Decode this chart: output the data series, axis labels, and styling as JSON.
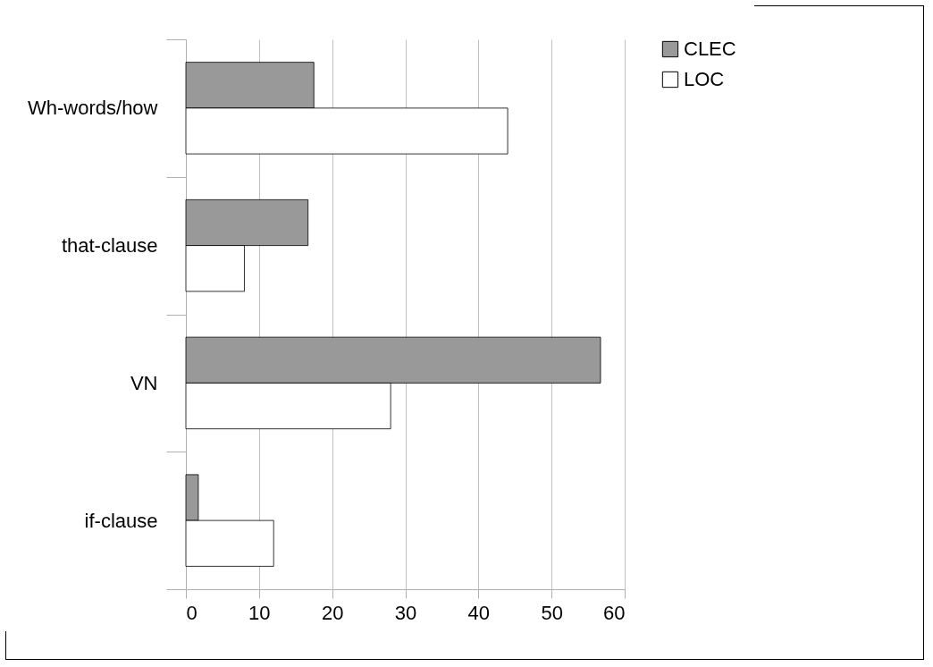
{
  "chart_data": {
    "type": "bar",
    "orientation": "horizontal",
    "categories": [
      "Wh-words/how",
      "that-clause",
      "VN",
      "if-clause"
    ],
    "series": [
      {
        "name": "CLEC",
        "color": "#999999",
        "values": [
          17.5,
          16.7,
          56.7,
          1.7
        ]
      },
      {
        "name": "LOC",
        "color": "#ffffff",
        "values": [
          44.0,
          8.0,
          28.0,
          12.0
        ]
      }
    ],
    "xlim": [
      0,
      60
    ],
    "xticks": [
      0,
      10,
      20,
      30,
      40,
      50,
      60
    ],
    "grid": "x",
    "legend": "right"
  }
}
